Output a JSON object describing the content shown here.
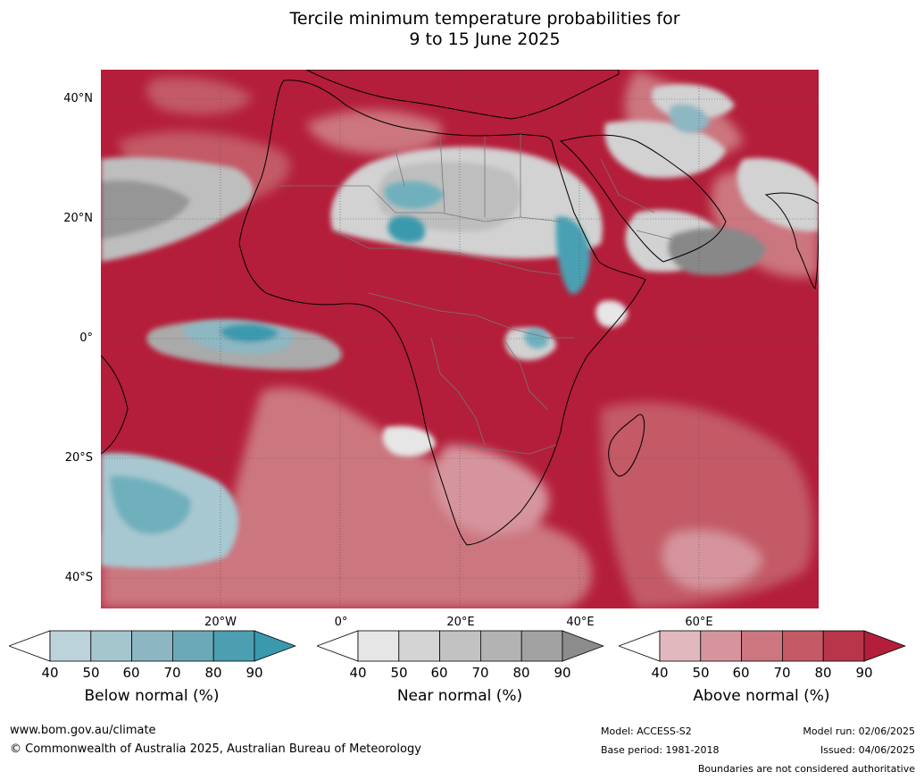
{
  "title": {
    "line1": "Tercile minimum temperature probabilities for",
    "line2": "9 to 15 June 2025"
  },
  "map": {
    "lat_labels": [
      "40°N",
      "20°N",
      "0°",
      "20°S",
      "40°S"
    ],
    "lon_labels": [
      "20°W",
      "0°",
      "20°E",
      "40°E",
      "60°E"
    ],
    "colors": {
      "above": [
        "#e0b8be",
        "#d6959e",
        "#cc767f",
        "#c35a66",
        "#b93549",
        "#b41e3a"
      ],
      "near": [
        "#e6e6e6",
        "#d2d2d2",
        "#bebebe",
        "#aaaaaa",
        "#969696",
        "#888888"
      ],
      "below": [
        "#bcd4db",
        "#a7c8d0",
        "#8db7c2",
        "#6fb0bd",
        "#49a0b2",
        "#3a99ad"
      ]
    }
  },
  "colorbars": {
    "below": {
      "label": "Below normal (%)",
      "ticks": [
        "40",
        "50",
        "60",
        "70",
        "80",
        "90"
      ],
      "colors": [
        "#ffffff",
        "#bcd3da",
        "#a6c6ce",
        "#8cb6c1",
        "#6ba9b7",
        "#4b9fb1",
        "#3a99ad"
      ]
    },
    "near": {
      "label": "Near normal (%)",
      "ticks": [
        "40",
        "50",
        "60",
        "70",
        "80",
        "90"
      ],
      "colors": [
        "#ffffff",
        "#e6e6e6",
        "#d4d4d4",
        "#c2c2c2",
        "#b3b3b3",
        "#a2a2a2",
        "#8c8c8c"
      ]
    },
    "above": {
      "label": "Above normal (%)",
      "ticks": [
        "40",
        "50",
        "60",
        "70",
        "80",
        "90"
      ],
      "colors": [
        "#ffffff",
        "#e0b8be",
        "#d6959e",
        "#cc767f",
        "#c35a66",
        "#b93549",
        "#b41e3a"
      ]
    }
  },
  "footer": {
    "url": "www.bom.gov.au/climate",
    "copyright": "© Commonwealth of Australia 2025, Australian Bureau of Meteorology",
    "model": "Model: ACCESS-S2",
    "base_period": "Base period: 1981-2018",
    "model_run": "Model run: 02/06/2025",
    "issued": "Issued: 04/06/2025",
    "disclaimer": "Boundaries are not considered authoritative"
  }
}
